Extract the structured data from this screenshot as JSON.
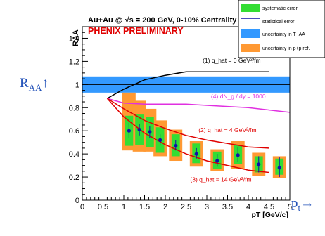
{
  "chart_data": {
    "type": "scatter",
    "title": "Au+Au @ √s = 200 GeV, 0-10% Centrality",
    "subtitle": "PHENIX PRELIMINARY",
    "xlabel": "p_T [GeV/c]",
    "ylabel": "R_AA",
    "xlim": [
      0,
      5
    ],
    "ylim": [
      0,
      1.5
    ],
    "xticks": [
      "0",
      "0.5",
      "1",
      "1.5",
      "2",
      "2.5",
      "3",
      "3.5",
      "4",
      "4.5",
      "5"
    ],
    "yticks": [
      "0",
      "0.2",
      "0.4",
      "0.6",
      "0.8",
      "1",
      "1.2",
      "1.4"
    ],
    "legend": {
      "placement": "top-right",
      "entries": [
        "systematic error",
        "statistical error",
        "uncertainty in T_AA",
        "uncertainty in p+p ref."
      ]
    },
    "t_aa_band": [
      0.93,
      1.07
    ],
    "reference_line": 1.0,
    "points": [
      {
        "x": 1.125,
        "y": 0.6,
        "stat": [
          0.54,
          0.67
        ],
        "sys": [
          0.47,
          0.73
        ],
        "ref": [
          0.43,
          0.93
        ]
      },
      {
        "x": 1.375,
        "y": 0.61,
        "stat": [
          0.56,
          0.66
        ],
        "sys": [
          0.48,
          0.74
        ],
        "ref": [
          0.42,
          0.86
        ]
      },
      {
        "x": 1.625,
        "y": 0.59,
        "stat": [
          0.54,
          0.64
        ],
        "sys": [
          0.46,
          0.72
        ],
        "ref": [
          0.42,
          0.79
        ]
      },
      {
        "x": 1.875,
        "y": 0.52,
        "stat": [
          0.48,
          0.57
        ],
        "sys": [
          0.41,
          0.63
        ],
        "ref": [
          0.38,
          0.69
        ]
      },
      {
        "x": 2.25,
        "y": 0.47,
        "stat": [
          0.43,
          0.52
        ],
        "sys": [
          0.38,
          0.57
        ],
        "ref": [
          0.34,
          0.61
        ]
      },
      {
        "x": 2.75,
        "y": 0.4,
        "stat": [
          0.36,
          0.45
        ],
        "sys": [
          0.32,
          0.49
        ],
        "ref": [
          0.29,
          0.51
        ]
      },
      {
        "x": 3.25,
        "y": 0.34,
        "stat": [
          0.29,
          0.4
        ],
        "sys": [
          0.27,
          0.42
        ],
        "ref": [
          0.25,
          0.44
        ]
      },
      {
        "x": 3.75,
        "y": 0.39,
        "stat": [
          0.33,
          0.46
        ],
        "sys": [
          0.31,
          0.48
        ],
        "ref": [
          0.27,
          0.51
        ]
      },
      {
        "x": 4.25,
        "y": 0.31,
        "stat": [
          0.24,
          0.38
        ],
        "sys": [
          0.24,
          0.38
        ],
        "ref": [
          0.21,
          0.41
        ]
      },
      {
        "x": 4.75,
        "y": 0.28,
        "stat": [
          0.2,
          0.37
        ],
        "sys": [
          0.22,
          0.36
        ],
        "ref": [
          0.19,
          0.38
        ]
      }
    ],
    "curves": [
      {
        "label": "(1) q_hat = 0 GeV²/fm",
        "color": "#000000",
        "x": [
          0.6,
          1.0,
          1.5,
          2.0,
          2.5,
          3.0,
          3.5,
          4.0,
          4.5
        ],
        "y": [
          0.88,
          0.96,
          1.04,
          1.08,
          1.11,
          1.11,
          1.11,
          1.11,
          1.11
        ]
      },
      {
        "label": "(4) dN_g / dy = 1000",
        "color": "#e030e0",
        "x": [
          0.6,
          1.0,
          1.5,
          2.0,
          2.5,
          3.0,
          3.5,
          4.0,
          4.5,
          5.0
        ],
        "y": [
          0.88,
          0.84,
          0.83,
          0.83,
          0.83,
          0.82,
          0.81,
          0.8,
          0.78,
          0.76
        ]
      },
      {
        "label": "(2) q_hat = 4 GeV²/fm",
        "color": "#e00000",
        "x": [
          0.6,
          1.0,
          1.5,
          2.0,
          2.5,
          3.0,
          3.5,
          4.0,
          4.5
        ],
        "y": [
          0.88,
          0.79,
          0.69,
          0.62,
          0.56,
          0.52,
          0.49,
          0.46,
          0.45
        ]
      },
      {
        "label": "(3) q_hat = 14 GeV²/fm",
        "color": "#e00000",
        "x": [
          0.6,
          1.0,
          1.5,
          2.0,
          2.5,
          3.0,
          3.5,
          4.0,
          4.5
        ],
        "y": [
          0.88,
          0.72,
          0.58,
          0.48,
          0.4,
          0.34,
          0.3,
          0.26,
          0.24
        ]
      }
    ]
  },
  "colors": {
    "systematic": "#33dd33",
    "statistical": "#1010aa",
    "t_aa": "#3399ff",
    "pp_ref": "#ff9933",
    "title": "#000000",
    "preliminary": "#e00000",
    "side_labels": "#2050b8"
  },
  "side_labels": {
    "raa_main": "R",
    "raa_sub": "AA",
    "raa_arrow": "↑",
    "pt_main": "p",
    "pt_sub": "t",
    "pt_arrow": "→"
  }
}
